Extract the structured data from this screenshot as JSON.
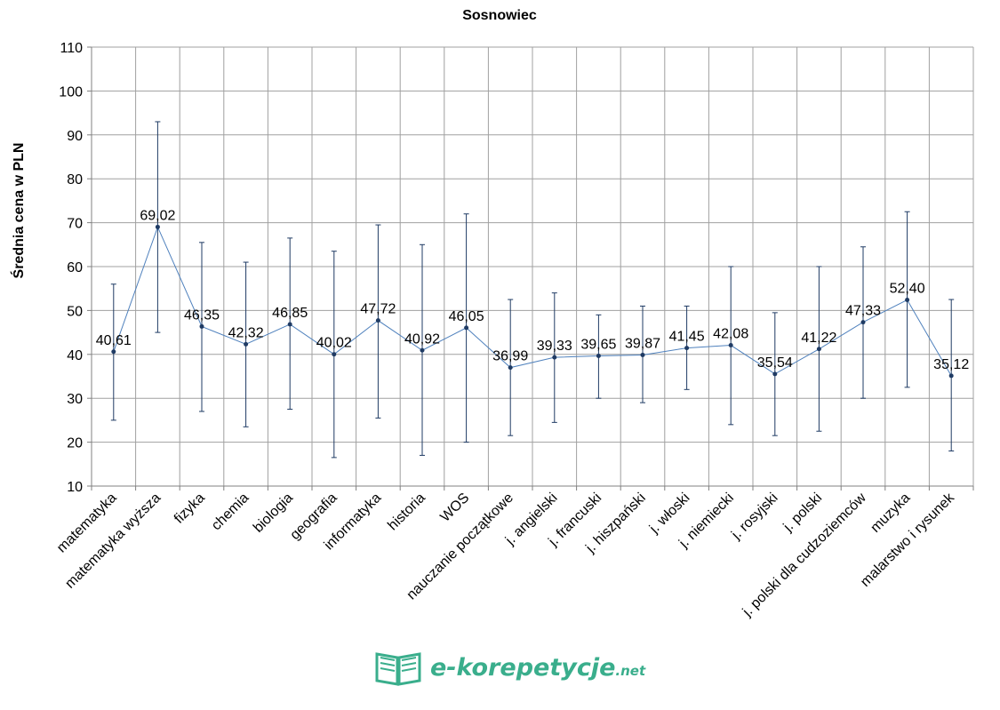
{
  "chart_data": {
    "type": "line",
    "title": "Sosnowiec",
    "xlabel": "",
    "ylabel": "Średnia cena w PLN",
    "ylim": [
      10,
      110
    ],
    "yticks": [
      10,
      20,
      30,
      40,
      50,
      60,
      70,
      80,
      90,
      100,
      110
    ],
    "grid": true,
    "categories": [
      "matematyka",
      "matematyka wyższa",
      "fizyka",
      "chemia",
      "biologia",
      "geografia",
      "informatyka",
      "historia",
      "WOS",
      "nauczanie początkowe",
      "j. angielski",
      "j. francuski",
      "j. hiszpański",
      "j. włoski",
      "j. niemiecki",
      "j. rosyjski",
      "j. polski",
      "j. polski dla cudzoziemców",
      "muzyka",
      "malarstwo i rysunek"
    ],
    "values": [
      40.61,
      69.02,
      46.35,
      42.32,
      46.85,
      40.02,
      47.72,
      40.92,
      46.05,
      36.99,
      39.33,
      39.65,
      39.87,
      41.45,
      42.08,
      35.54,
      41.22,
      47.33,
      52.4,
      35.12
    ],
    "labels": [
      "40,61",
      "69,02",
      "46,35",
      "42,32",
      "46,85",
      "40,02",
      "47,72",
      "40,92",
      "46,05",
      "36,99",
      "39,33",
      "39,65",
      "39,87",
      "41,45",
      "42,08",
      "35,54",
      "41,22",
      "47,33",
      "52,40",
      "35,12"
    ],
    "error_low": [
      25,
      45,
      27,
      23.5,
      27.5,
      16.5,
      25.5,
      17,
      20,
      21.5,
      24.5,
      30,
      29,
      32,
      24,
      21.5,
      22.5,
      30,
      32.5,
      18
    ],
    "error_high": [
      56,
      93,
      65.5,
      61,
      66.5,
      63.5,
      69.5,
      65,
      72,
      52.5,
      54,
      49,
      51,
      51,
      60,
      49.5,
      60,
      64.5,
      72.5,
      52.5
    ],
    "line_color": "#4f81bd",
    "marker_color": "#1f3b64",
    "grid_color": "#a0a0a0"
  },
  "logo": {
    "main": "e-korepetycje",
    "suffix": ".net",
    "color": "#3aae8c"
  }
}
